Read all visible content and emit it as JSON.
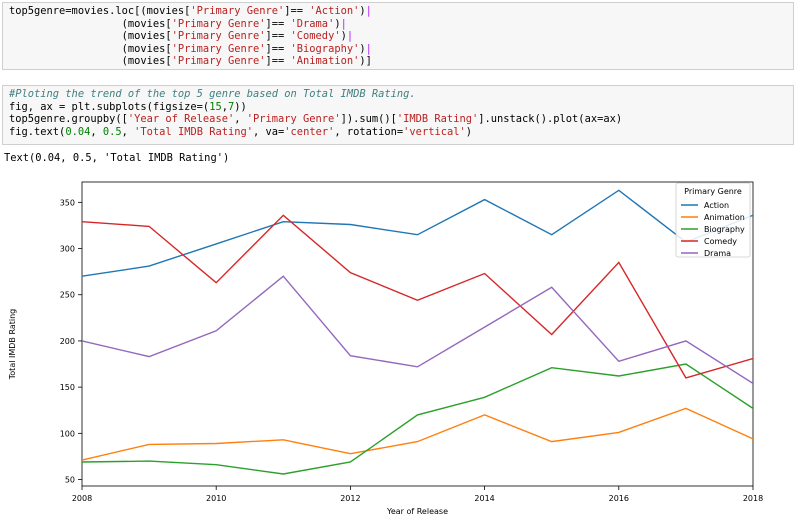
{
  "cell1": {
    "lines": [
      [
        {
          "t": "top5genre=movies.loc[(movies["
        },
        {
          "t": "'Primary Genre'",
          "k": "s"
        },
        {
          "t": "]== "
        },
        {
          "t": "'Action'",
          "k": "s"
        },
        {
          "t": ")",
          "k": ""
        },
        {
          "t": "|",
          "k": "o"
        }
      ],
      [
        {
          "t": "                  (movies["
        },
        {
          "t": "'Primary Genre'",
          "k": "s"
        },
        {
          "t": "]== "
        },
        {
          "t": "'Drama'",
          "k": "s"
        },
        {
          "t": ")"
        },
        {
          "t": "|",
          "k": "o"
        }
      ],
      [
        {
          "t": "                  (movies["
        },
        {
          "t": "'Primary Genre'",
          "k": "s"
        },
        {
          "t": "]== "
        },
        {
          "t": "'Comedy'",
          "k": "s"
        },
        {
          "t": ")"
        },
        {
          "t": "|",
          "k": "o"
        }
      ],
      [
        {
          "t": "                  (movies["
        },
        {
          "t": "'Primary Genre'",
          "k": "s"
        },
        {
          "t": "]== "
        },
        {
          "t": "'Biography'",
          "k": "s"
        },
        {
          "t": ")"
        },
        {
          "t": "|",
          "k": "o"
        }
      ],
      [
        {
          "t": "                  (movies["
        },
        {
          "t": "'Primary Genre'",
          "k": "s"
        },
        {
          "t": "]== "
        },
        {
          "t": "'Animation'",
          "k": "s"
        },
        {
          "t": ")]"
        }
      ]
    ]
  },
  "cell2": {
    "lines": [
      [
        {
          "t": "#Ploting the trend of the top 5 genre based on Total IMDB Rating.",
          "k": "c"
        }
      ],
      [
        {
          "t": "fig, ax = plt.subplots(figsize=("
        },
        {
          "t": "15",
          "k": "n"
        },
        {
          "t": ","
        },
        {
          "t": "7",
          "k": "n"
        },
        {
          "t": "))"
        }
      ],
      [
        {
          "t": "top5genre.groupby(["
        },
        {
          "t": "'Year of Release'",
          "k": "s"
        },
        {
          "t": ", "
        },
        {
          "t": "'Primary Genre'",
          "k": "s"
        },
        {
          "t": "]).sum()["
        },
        {
          "t": "'IMDB Rating'",
          "k": "s"
        },
        {
          "t": "].unstack().plot(ax=ax)"
        }
      ],
      [
        {
          "t": "fig.text("
        },
        {
          "t": "0.04",
          "k": "n"
        },
        {
          "t": ", "
        },
        {
          "t": "0.5",
          "k": "n"
        },
        {
          "t": ", "
        },
        {
          "t": "'Total IMDB Rating'",
          "k": "s"
        },
        {
          "t": ", va="
        },
        {
          "t": "'center'",
          "k": "s"
        },
        {
          "t": ", rotation="
        },
        {
          "t": "'vertical'",
          "k": "s"
        },
        {
          "t": ")"
        }
      ]
    ]
  },
  "output_text": "Text(0.04, 0.5, 'Total IMDB Rating')",
  "chart_data": {
    "type": "line",
    "x": [
      2008,
      2009,
      2010,
      2011,
      2012,
      2013,
      2014,
      2015,
      2016,
      2017,
      2018
    ],
    "xlabel": "Year of Release",
    "ylabel": "Total IMDB Rating",
    "xlim": [
      2008,
      2018
    ],
    "ylim": [
      43,
      372
    ],
    "xticks": [
      "2008",
      "2010",
      "2012",
      "2014",
      "2016",
      "2018"
    ],
    "yticks": [
      "50",
      "100",
      "150",
      "200",
      "250",
      "300",
      "350"
    ],
    "grid": false,
    "legend_title": "Primary Genre",
    "legend_position": "top-right",
    "series": [
      {
        "name": "Action",
        "color": "#1f77b4",
        "values": [
          270,
          281,
          305,
          329,
          326,
          315,
          353,
          315,
          363,
          307,
          336
        ]
      },
      {
        "name": "Animation",
        "color": "#ff7f0e",
        "values": [
          71,
          88,
          89,
          93,
          78,
          91,
          120,
          91,
          101,
          127,
          94
        ]
      },
      {
        "name": "Biography",
        "color": "#2ca02c",
        "values": [
          69,
          70,
          66,
          56,
          69,
          120,
          139,
          171,
          162,
          175,
          127
        ]
      },
      {
        "name": "Comedy",
        "color": "#d62728",
        "values": [
          329,
          324,
          263,
          336,
          274,
          244,
          273,
          207,
          285,
          160,
          181
        ]
      },
      {
        "name": "Drama",
        "color": "#9467bd",
        "values": [
          200,
          183,
          211,
          270,
          184,
          172,
          215,
          258,
          178,
          200,
          154
        ]
      }
    ]
  }
}
